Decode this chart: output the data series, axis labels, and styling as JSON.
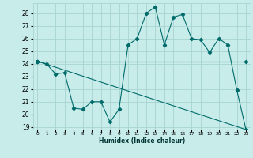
{
  "title": "",
  "xlabel": "Humidex (Indice chaleur)",
  "ylabel": "",
  "bg_color": "#c8ecea",
  "grid_color": "#a8d4d0",
  "line_color": "#006b6b",
  "xlim": [
    -0.5,
    23.5
  ],
  "ylim": [
    18.8,
    28.8
  ],
  "yticks": [
    19,
    20,
    21,
    22,
    23,
    24,
    25,
    26,
    27,
    28
  ],
  "xticks": [
    0,
    1,
    2,
    3,
    4,
    5,
    6,
    7,
    8,
    9,
    10,
    11,
    12,
    13,
    14,
    15,
    16,
    17,
    18,
    19,
    20,
    21,
    22,
    23
  ],
  "series": [
    {
      "x": [
        0,
        1,
        2,
        3,
        4,
        5,
        6,
        7,
        8,
        9,
        10,
        11,
        12,
        13,
        14,
        15,
        16,
        17,
        18,
        19,
        20,
        21,
        22,
        23
      ],
      "y": [
        24.2,
        24.0,
        23.2,
        23.3,
        20.5,
        20.4,
        21.0,
        21.0,
        19.4,
        20.4,
        25.5,
        26.0,
        28.0,
        28.5,
        25.5,
        27.7,
        27.9,
        26.0,
        25.9,
        24.9,
        26.0,
        25.5,
        21.9,
        18.8
      ]
    },
    {
      "x": [
        0,
        23
      ],
      "y": [
        24.2,
        24.2
      ]
    },
    {
      "x": [
        0,
        23
      ],
      "y": [
        24.2,
        18.8
      ]
    }
  ]
}
